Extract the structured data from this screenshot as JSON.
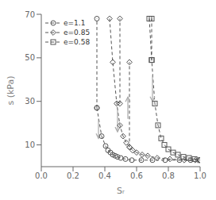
{
  "chart_data": {
    "type": "line",
    "xlabel": "Sᵣ",
    "ylabel": "s (kPa)",
    "xlim": [
      0,
      1.0
    ],
    "ylim": [
      0,
      70
    ],
    "xticks": [
      {
        "value": 0,
        "label": "0.0"
      },
      0.2,
      0.4,
      0.6,
      0.8,
      {
        "value": 1.0,
        "label": "1.0"
      }
    ],
    "yticks": [
      10,
      30,
      50,
      70
    ],
    "legend": "upper left",
    "grid": false,
    "series": [
      {
        "name": "e=1.1",
        "marker": "circle",
        "line_style": "dashed",
        "color": "#555555",
        "x": [
          0.35,
          0.38,
          0.405,
          0.42,
          0.435,
          0.45,
          0.465,
          0.48,
          0.5,
          0.53,
          0.57,
          0.63,
          0.7,
          0.78,
          0.87,
          0.94,
          1.0
        ],
        "values": [
          27,
          14,
          9.5,
          7.5,
          6.5,
          5.5,
          5,
          4.5,
          4,
          3.5,
          3,
          3,
          3,
          3,
          3,
          3,
          3
        ],
        "drying_paths": [
          {
            "x": [
              0.35,
              0.35
            ],
            "values": [
              27,
              68
            ]
          }
        ],
        "arrows": [
          {
            "x1": 0.36,
            "y1": 22,
            "x2": 0.36,
            "y2": 13,
            "color": "#aaaaaa"
          }
        ]
      },
      {
        "name": "e=0.85",
        "marker": "diamond",
        "line_style": "dashed",
        "color": "#555555",
        "x": [
          0.43,
          0.45,
          0.475,
          0.495,
          0.515,
          0.535,
          0.555,
          0.575,
          0.6,
          0.635,
          0.67,
          0.73,
          0.81,
          0.9,
          0.97,
          1.0
        ],
        "values": [
          68,
          48,
          29,
          19,
          14,
          11,
          9,
          7.5,
          6.5,
          5.5,
          5,
          4,
          3.5,
          3,
          3,
          3
        ],
        "drying_paths": [
          {
            "x": [
              0.495,
              0.495
            ],
            "values": [
              29,
              68
            ]
          },
          {
            "x": [
              0.555,
              0.555
            ],
            "values": [
              9,
              48
            ]
          }
        ],
        "arrows": [
          {
            "x1": 0.48,
            "y1": 26,
            "x2": 0.48,
            "y2": 16,
            "color": "#aaaaaa"
          },
          {
            "x1": 0.545,
            "y1": 22,
            "x2": 0.545,
            "y2": 32,
            "color": "#aaaaaa"
          }
        ]
      },
      {
        "name": "e=0.58",
        "marker": "square",
        "line_style": "dashed",
        "color": "#555555",
        "x": [
          0.68,
          0.695,
          0.715,
          0.735,
          0.755,
          0.775,
          0.8,
          0.83,
          0.86,
          0.895,
          0.93,
          0.965,
          1.0
        ],
        "values": [
          68,
          49,
          29,
          19,
          13,
          10,
          8,
          6.5,
          5.5,
          4.5,
          4,
          3.5,
          3
        ],
        "drying_paths": [
          {
            "x": [
              0.695,
              0.695
            ],
            "values": [
              49,
              68
            ]
          }
        ],
        "arrows": [
          {
            "x1": 0.7,
            "y1": 42,
            "x2": 0.7,
            "y2": 30,
            "color": "#aaaaaa"
          }
        ]
      }
    ]
  }
}
